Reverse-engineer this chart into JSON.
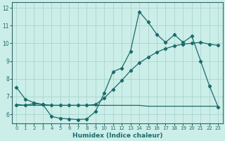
{
  "xlabel": "Humidex (Indice chaleur)",
  "bg_color": "#cceee8",
  "grid_color": "#aad4ce",
  "line_color": "#1a6b6b",
  "spine_color": "#336666",
  "xlim": [
    -0.5,
    23.5
  ],
  "ylim": [
    5.5,
    12.3
  ],
  "yticks": [
    6,
    7,
    8,
    9,
    10,
    11,
    12
  ],
  "xticks": [
    0,
    1,
    2,
    3,
    4,
    5,
    6,
    7,
    8,
    9,
    10,
    11,
    12,
    13,
    14,
    15,
    16,
    17,
    18,
    19,
    20,
    21,
    22,
    23
  ],
  "line1_x": [
    0,
    1,
    2,
    3,
    4,
    5,
    6,
    7,
    8,
    9,
    10,
    11,
    12,
    13,
    14,
    15,
    16,
    17,
    18,
    19,
    20,
    21,
    22,
    23
  ],
  "line1_y": [
    7.5,
    6.85,
    6.65,
    6.55,
    5.87,
    5.77,
    5.73,
    5.7,
    5.73,
    6.15,
    7.18,
    8.4,
    8.6,
    9.55,
    11.78,
    11.2,
    10.5,
    10.05,
    10.48,
    10.05,
    10.4,
    9.0,
    7.6,
    6.4
  ],
  "line2_x": [
    0,
    1,
    2,
    3,
    4,
    5,
    6,
    7,
    8,
    9,
    10,
    11,
    12,
    13,
    14,
    15,
    16,
    17,
    18,
    19,
    20,
    21,
    22,
    23
  ],
  "line2_y": [
    6.5,
    6.5,
    6.6,
    6.55,
    6.5,
    6.5,
    6.5,
    6.5,
    6.5,
    6.55,
    6.9,
    7.4,
    7.9,
    8.45,
    8.9,
    9.2,
    9.5,
    9.7,
    9.85,
    9.95,
    10.0,
    10.05,
    9.95,
    9.88
  ],
  "line3_x": [
    0,
    1,
    2,
    3,
    4,
    5,
    6,
    7,
    8,
    9,
    10,
    11,
    12,
    13,
    14,
    15,
    16,
    17,
    18,
    19,
    20,
    21,
    22,
    23
  ],
  "line3_y": [
    6.55,
    6.5,
    6.5,
    6.5,
    6.5,
    6.5,
    6.5,
    6.5,
    6.5,
    6.5,
    6.5,
    6.5,
    6.5,
    6.5,
    6.5,
    6.45,
    6.45,
    6.45,
    6.45,
    6.45,
    6.45,
    6.45,
    6.45,
    6.45
  ]
}
